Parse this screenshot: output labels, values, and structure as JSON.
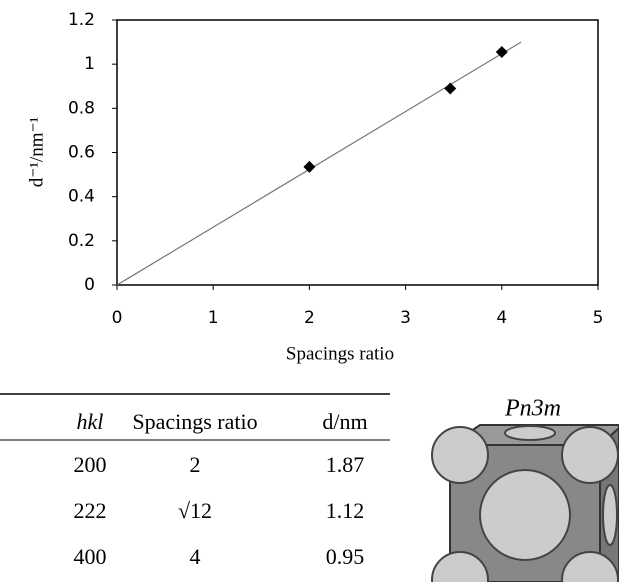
{
  "chart_data": {
    "type": "scatter",
    "x_label": "Spacings ratio",
    "y_label": "d⁻¹/nm⁻¹",
    "x": [
      2,
      3.464,
      4
    ],
    "values": [
      0.535,
      0.89,
      1.055
    ],
    "color": "#000000",
    "trendline": {
      "x": [
        0,
        4.2
      ],
      "y": [
        0,
        1.1
      ],
      "color": "#777777"
    },
    "xlim": [
      0,
      5
    ],
    "xticks": [
      0,
      1,
      2,
      3,
      4,
      5
    ],
    "ylim": [
      0,
      1.2
    ],
    "yticks": [
      0,
      0.2,
      0.4,
      0.6,
      0.8,
      1,
      1.2
    ],
    "grid": false
  },
  "table": {
    "header": [
      "hkl",
      "Spacings ratio",
      "d/nm"
    ],
    "rows": [
      [
        "200",
        "2",
        "1.87"
      ],
      [
        "222",
        "√12",
        "1.12"
      ],
      [
        "400",
        "4",
        "0.95"
      ]
    ]
  },
  "figure": {
    "label": "Pn3m"
  }
}
